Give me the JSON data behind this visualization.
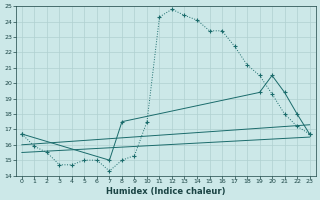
{
  "bg_color": "#cce8e8",
  "grid_color": "#b0d0d0",
  "line_color": "#1a6b6b",
  "xlabel": "Humidex (Indice chaleur)",
  "xlim": [
    -0.5,
    23.5
  ],
  "ylim": [
    14,
    25
  ],
  "yticks": [
    14,
    15,
    16,
    17,
    18,
    19,
    20,
    21,
    22,
    23,
    24,
    25
  ],
  "xticks": [
    0,
    1,
    2,
    3,
    4,
    5,
    6,
    7,
    8,
    9,
    10,
    11,
    12,
    13,
    14,
    15,
    16,
    17,
    18,
    19,
    20,
    21,
    22,
    23
  ],
  "curve1_x": [
    0,
    1,
    2,
    3,
    4,
    5,
    6,
    7,
    8,
    9,
    10,
    11,
    12,
    13,
    14,
    15,
    16,
    17,
    18,
    19,
    20,
    21,
    22,
    23
  ],
  "curve1_y": [
    16.7,
    15.9,
    15.5,
    14.7,
    14.7,
    15.0,
    15.0,
    14.3,
    15.0,
    15.3,
    17.5,
    24.3,
    24.8,
    24.4,
    24.1,
    23.4,
    23.4,
    22.4,
    21.2,
    20.5,
    19.3,
    18.0,
    17.2,
    16.7
  ],
  "curve2_x": [
    0,
    7,
    8,
    19,
    20,
    21,
    22,
    23
  ],
  "curve2_y": [
    16.7,
    15.0,
    17.5,
    19.4,
    20.5,
    19.4,
    18.0,
    16.7
  ],
  "line1_x": [
    0,
    23
  ],
  "line1_y": [
    15.5,
    16.5
  ],
  "line2_x": [
    0,
    23
  ],
  "line2_y": [
    16.0,
    17.3
  ]
}
